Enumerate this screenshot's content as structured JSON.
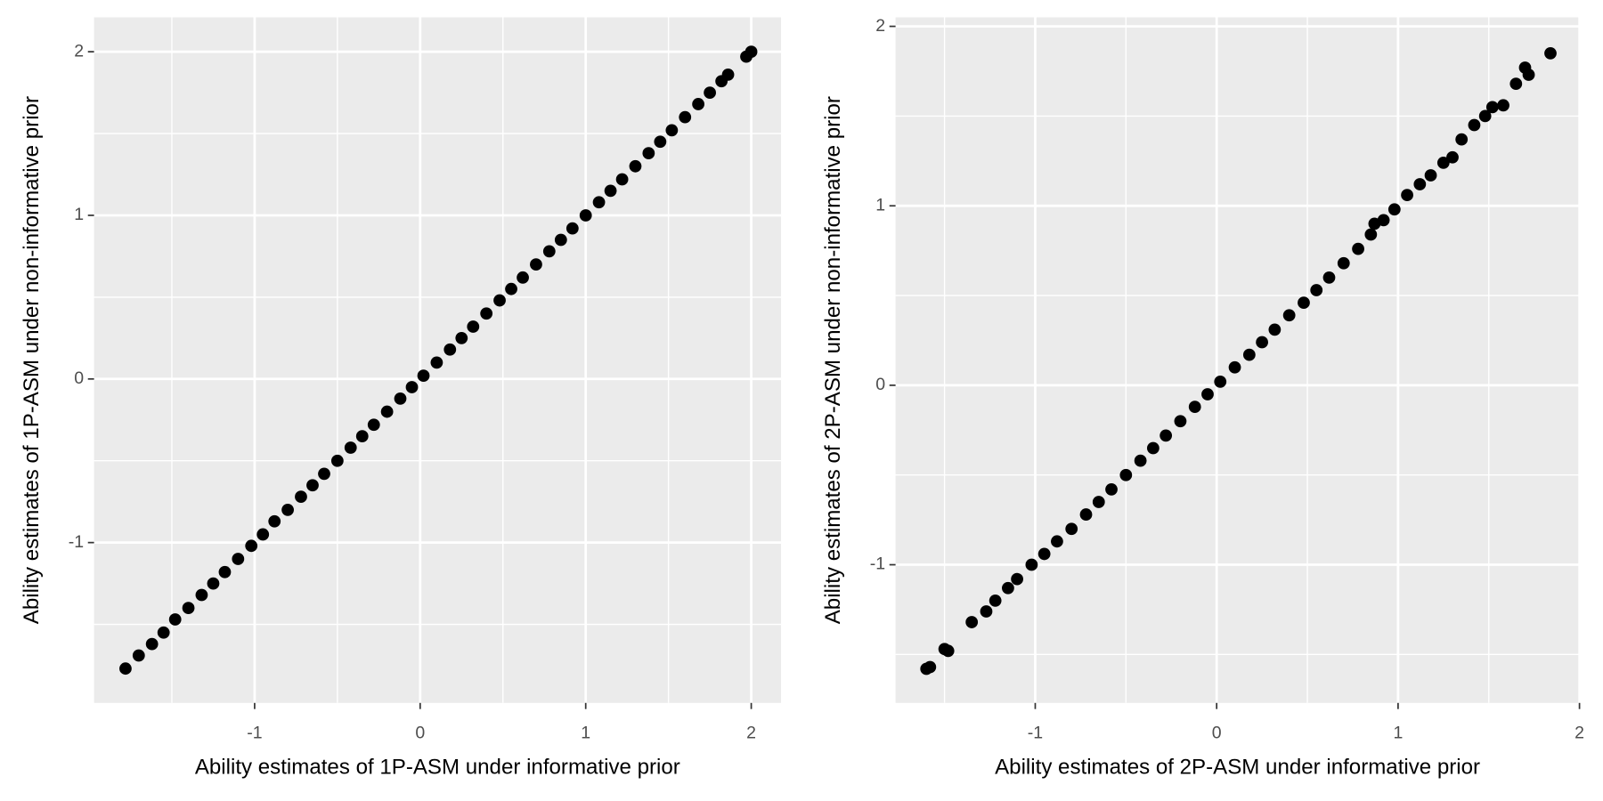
{
  "chart_data": [
    {
      "type": "scatter",
      "x_label": "Ability estimates of 1P-ASM under informative prior",
      "y_label": "Ability estimates of 1P-ASM under non-informative prior",
      "color": "#000000",
      "grid": true,
      "xlim": [
        -1.97,
        2.18
      ],
      "ylim": [
        -1.98,
        2.21
      ],
      "xticks": [
        -1,
        0,
        1,
        2
      ],
      "yticks": [
        -1,
        0,
        1,
        2
      ],
      "xminor": [
        -1.5,
        -0.5,
        0.5,
        1.5
      ],
      "yminor": [
        -1.5,
        -0.5,
        0.5,
        1.5
      ],
      "x": [
        -1.78,
        -1.7,
        -1.62,
        -1.55,
        -1.48,
        -1.4,
        -1.32,
        -1.25,
        -1.18,
        -1.1,
        -1.02,
        -0.95,
        -0.88,
        -0.8,
        -0.72,
        -0.65,
        -0.58,
        -0.5,
        -0.42,
        -0.35,
        -0.28,
        -0.2,
        -0.12,
        -0.05,
        0.02,
        0.1,
        0.18,
        0.25,
        0.32,
        0.4,
        0.48,
        0.55,
        0.62,
        0.7,
        0.78,
        0.85,
        0.92,
        1.0,
        1.08,
        1.15,
        1.22,
        1.3,
        1.38,
        1.45,
        1.52,
        1.6,
        1.68,
        1.75,
        1.82,
        1.86,
        1.97,
        2.0
      ],
      "values": [
        -1.77,
        -1.69,
        -1.62,
        -1.55,
        -1.47,
        -1.4,
        -1.32,
        -1.25,
        -1.18,
        -1.1,
        -1.02,
        -0.95,
        -0.87,
        -0.8,
        -0.72,
        -0.65,
        -0.58,
        -0.5,
        -0.42,
        -0.35,
        -0.28,
        -0.2,
        -0.12,
        -0.05,
        0.02,
        0.1,
        0.18,
        0.25,
        0.32,
        0.4,
        0.48,
        0.55,
        0.62,
        0.7,
        0.78,
        0.85,
        0.92,
        1.0,
        1.08,
        1.15,
        1.22,
        1.3,
        1.38,
        1.45,
        1.52,
        1.6,
        1.68,
        1.75,
        1.82,
        1.86,
        1.97,
        2.0
      ]
    },
    {
      "type": "scatter",
      "x_label": "Ability estimates of 2P-ASM under informative prior",
      "y_label": "Ability estimates of 2P-ASM under non-informative prior",
      "color": "#000000",
      "grid": true,
      "xlim": [
        -1.77,
        2.0
      ],
      "ylim": [
        -1.77,
        2.05
      ],
      "xticks": [
        -1,
        0,
        1,
        2
      ],
      "yticks": [
        -1,
        0,
        1,
        2
      ],
      "xminor": [
        -1.5,
        -0.5,
        0.5,
        1.5
      ],
      "yminor": [
        -1.5,
        -0.5,
        0.5,
        1.5
      ],
      "x": [
        -1.6,
        -1.58,
        -1.5,
        -1.48,
        -1.35,
        -1.27,
        -1.22,
        -1.15,
        -1.1,
        -1.02,
        -0.95,
        -0.88,
        -0.8,
        -0.72,
        -0.65,
        -0.58,
        -0.5,
        -0.42,
        -0.35,
        -0.28,
        -0.2,
        -0.12,
        -0.05,
        0.02,
        0.1,
        0.18,
        0.25,
        0.32,
        0.4,
        0.48,
        0.55,
        0.62,
        0.7,
        0.78,
        0.85,
        0.87,
        0.92,
        0.98,
        1.05,
        1.12,
        1.18,
        1.25,
        1.3,
        1.35,
        1.42,
        1.48,
        1.52,
        1.58,
        1.65,
        1.7,
        1.72,
        1.84
      ],
      "values": [
        -1.58,
        -1.57,
        -1.47,
        -1.48,
        -1.32,
        -1.26,
        -1.2,
        -1.13,
        -1.08,
        -1.0,
        -0.94,
        -0.87,
        -0.8,
        -0.72,
        -0.65,
        -0.58,
        -0.5,
        -0.42,
        -0.35,
        -0.28,
        -0.2,
        -0.12,
        -0.05,
        0.02,
        0.1,
        0.17,
        0.24,
        0.31,
        0.39,
        0.46,
        0.53,
        0.6,
        0.68,
        0.76,
        0.84,
        0.9,
        0.92,
        0.98,
        1.06,
        1.12,
        1.17,
        1.24,
        1.27,
        1.37,
        1.45,
        1.5,
        1.55,
        1.56,
        1.68,
        1.77,
        1.73,
        1.85
      ]
    }
  ]
}
